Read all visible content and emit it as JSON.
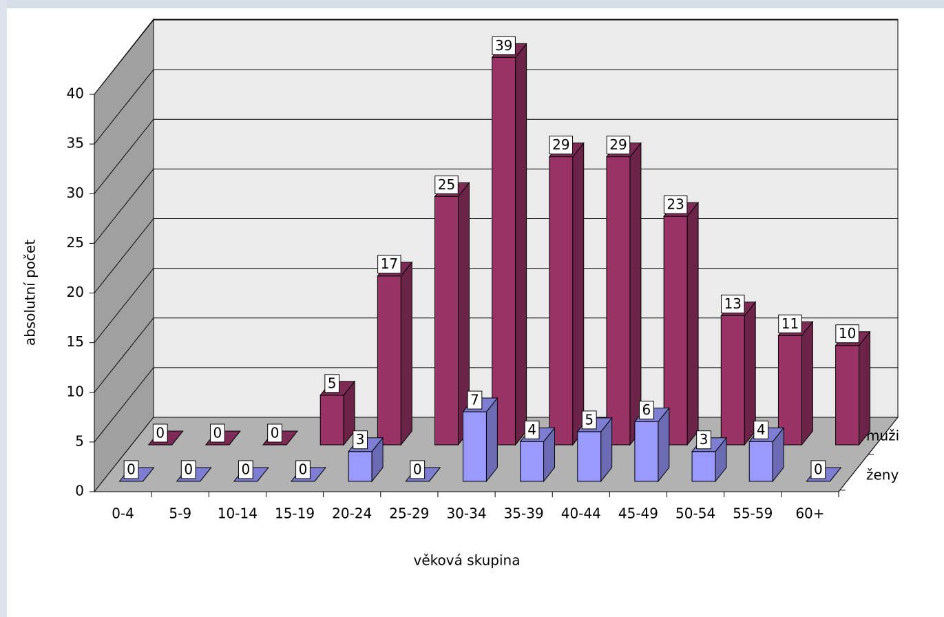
{
  "chart_data": {
    "type": "bar3d",
    "categories": [
      "0-4",
      "5-9",
      "10-14",
      "15-19",
      "20-24",
      "25-29",
      "30-34",
      "35-39",
      "40-44",
      "45-49",
      "50-54",
      "55-59",
      "60+"
    ],
    "series": [
      {
        "name": "muži",
        "color": "#993366",
        "values": [
          0,
          0,
          0,
          5,
          17,
          25,
          39,
          29,
          29,
          23,
          13,
          11,
          10
        ]
      },
      {
        "name": "ženy",
        "color": "#9999ff",
        "values": [
          0,
          0,
          0,
          0,
          3,
          0,
          7,
          4,
          5,
          6,
          3,
          4,
          0
        ]
      }
    ],
    "x_label": "věková skupina",
    "y_label": "absolutní počet",
    "ylim": [
      0,
      40
    ],
    "yticks": [
      0,
      5,
      10,
      15,
      20,
      25,
      30,
      35,
      40
    ],
    "grid": true
  }
}
